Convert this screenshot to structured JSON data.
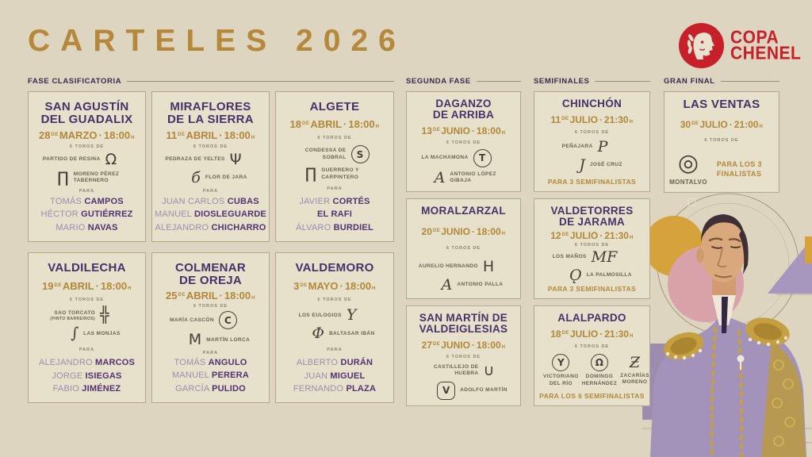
{
  "page": {
    "title": "CARTELES 2026"
  },
  "logo": {
    "line1": "COPA",
    "line2": "CHENEL",
    "icon": "laurel-profile-icon",
    "color": "#c8202a"
  },
  "colors": {
    "background": "#ddd5bf",
    "card": "#e7e0ca",
    "gold": "#b1883a",
    "purple": "#46316b",
    "red": "#c8202a"
  },
  "labels": {
    "toros": "6 TOROS DE",
    "para": "PARA",
    "de": "DE",
    "h": "H",
    "dot": "·"
  },
  "sections": [
    {
      "id": "fase",
      "label": "FASE CLASIFICATORIA"
    },
    {
      "id": "segunda",
      "label": "SEGUNDA FASE"
    },
    {
      "id": "semis",
      "label": "SEMIFINALES"
    },
    {
      "id": "final",
      "label": "GRAN FINAL"
    }
  ],
  "cards": [
    {
      "section": "fase",
      "layout": "duo",
      "venue": [
        "SAN AGUSTÍN",
        "DEL GUADALIX"
      ],
      "day": "28",
      "month": "MARZO",
      "time": "18:00",
      "ganaderias": [
        {
          "name": "PARTIDO DE RESINA",
          "glyph": "Ω",
          "shape": "plain"
        },
        {
          "name": "MORENO PÉREZ TABERNERO",
          "glyph": "∏",
          "shape": "plain"
        }
      ],
      "toreros": [
        {
          "first": "TOMÁS",
          "last": "CAMPOS"
        },
        {
          "first": "HÉCTOR",
          "last": "GUTIÉRREZ"
        },
        {
          "first": "MARIO",
          "last": "NAVAS"
        }
      ]
    },
    {
      "section": "fase",
      "layout": "duo",
      "venue": [
        "MIRAFLORES",
        "DE LA SIERRA"
      ],
      "day": "11",
      "month": "ABRIL",
      "time": "18:00",
      "ganaderias": [
        {
          "name": "PEDRAZA DE YELTES",
          "glyph": "Ψ",
          "shape": "plain"
        },
        {
          "name": "FLOR DE JARA",
          "glyph": "б",
          "shape": "plain",
          "serif": true
        }
      ],
      "toreros": [
        {
          "first": "JUAN CARLOS",
          "last": "CUBAS"
        },
        {
          "first": "MANUEL",
          "last": "DIOSLEGUARDE"
        },
        {
          "first": "ALEJANDRO",
          "last": "CHICHARRO"
        }
      ]
    },
    {
      "section": "fase",
      "layout": "duo",
      "venue": [
        "ALGETE"
      ],
      "day": "18",
      "month": "ABRIL",
      "time": "18:00",
      "ganaderias": [
        {
          "name": "CONDESSA DE SOBRAL",
          "glyph": "S",
          "shape": "circle"
        },
        {
          "name": "GUERRERO Y CARPINTERO",
          "glyph": "∏",
          "shape": "plain"
        }
      ],
      "toreros": [
        {
          "first": "JAVIER",
          "last": "CORTÉS"
        },
        {
          "first": "",
          "last": "EL RAFI"
        },
        {
          "first": "ÁLVARO",
          "last": "BURDIEL"
        }
      ]
    },
    {
      "section": "fase",
      "layout": "duo",
      "venue": [
        "VALDILECHA"
      ],
      "day": "19",
      "month": "ABRIL",
      "time": "18:00",
      "ganaderias": [
        {
          "name": "SAO TORCATO",
          "sub": "(PINTO BARREIROS)",
          "glyph": "╬",
          "shape": "plain"
        },
        {
          "name": "LAS MONJAS",
          "glyph": "∫",
          "shape": "plain",
          "serif": true
        }
      ],
      "toreros": [
        {
          "first": "ALEJANDRO",
          "last": "MARCOS"
        },
        {
          "first": "JORGE",
          "last": "ISIEGAS"
        },
        {
          "first": "FABIO",
          "last": "JIMÉNEZ"
        }
      ]
    },
    {
      "section": "fase",
      "layout": "duo",
      "venue": [
        "COLMENAR",
        "DE OREJA"
      ],
      "day": "25",
      "month": "ABRIL",
      "time": "18:00",
      "ganaderias": [
        {
          "name": "MARÍA CASCÓN",
          "glyph": "C",
          "shape": "circle"
        },
        {
          "name": "MARTÍN LORCA",
          "glyph": "M",
          "shape": "plain"
        }
      ],
      "toreros": [
        {
          "first": "TOMÁS",
          "last": "ANGULO"
        },
        {
          "first": "MANUEL",
          "last": "PERERA"
        },
        {
          "first": "GARCÍA",
          "last": "PULIDO"
        }
      ]
    },
    {
      "section": "fase",
      "layout": "duo",
      "venue": [
        "VALDEMORO"
      ],
      "day": "3",
      "month": "MAYO",
      "time": "18:00",
      "ganaderias": [
        {
          "name": "LOS EULOGIOS",
          "glyph": "Y",
          "shape": "plain",
          "serif": true
        },
        {
          "name": "BALTASAR IBÁN",
          "glyph": "Φ",
          "shape": "plain",
          "serif": true
        }
      ],
      "toreros": [
        {
          "first": "ALBERTO",
          "last": "DURÁN"
        },
        {
          "first": "JUAN",
          "last": "MIGUEL"
        },
        {
          "first": "FERNANDO",
          "last": "PLAZA"
        }
      ]
    },
    {
      "section": "segunda",
      "layout": "duo",
      "venue": [
        "DAGANZO",
        "DE ARRIBA"
      ],
      "day": "13",
      "month": "JUNIO",
      "time": "18:00",
      "ganaderias": [
        {
          "name": "LA MACHAMONA",
          "glyph": "T",
          "shape": "circle"
        },
        {
          "name": "ANTONIO LÓPEZ GIBAJA",
          "glyph": "A",
          "shape": "plain",
          "serif": true
        }
      ]
    },
    {
      "section": "segunda",
      "layout": "duo",
      "venue": [
        "MORALZARZAL"
      ],
      "day": "20",
      "month": "JUNIO",
      "time": "18:00",
      "ganaderias": [
        {
          "name": "AURELIO HERNANDO",
          "glyph": "H",
          "shape": "plain"
        },
        {
          "name": "ANTONIO PALLA",
          "glyph": "A",
          "shape": "plain",
          "serif": true
        }
      ]
    },
    {
      "section": "segunda",
      "layout": "duo",
      "venue": [
        "SAN MARTÍN DE",
        "VALDEIGLESIAS"
      ],
      "day": "27",
      "month": "JUNIO",
      "time": "18:00",
      "ganaderias": [
        {
          "name": "CASTILLEJO DE HUEBRA",
          "glyph": "∪",
          "shape": "plain"
        },
        {
          "name": "ADOLFO MARTÍN",
          "glyph": "V",
          "shape": "circle hex"
        }
      ]
    },
    {
      "section": "semis",
      "layout": "duo",
      "venue": [
        "CHINCHÓN"
      ],
      "day": "11",
      "month": "JULIO",
      "time": "21:30",
      "ganaderias": [
        {
          "name": "PEÑAJARA",
          "glyph": "P",
          "shape": "plain",
          "serif": true
        },
        {
          "name": "JOSÉ CRUZ",
          "glyph": "J",
          "shape": "plain",
          "serif": true
        }
      ],
      "note": "PARA 3 SEMIFINALISTAS"
    },
    {
      "section": "semis",
      "layout": "duo",
      "venue": [
        "VALDETORRES",
        "DE JARAMA"
      ],
      "day": "12",
      "month": "JULIO",
      "time": "21:30",
      "ganaderias": [
        {
          "name": "LOS MAÑOS",
          "glyph": "MF",
          "shape": "plain",
          "serif": true
        },
        {
          "name": "LA PALMOSILLA",
          "glyph": "Ǫ",
          "shape": "plain",
          "serif": true
        }
      ],
      "note": "PARA 3 SEMIFINALISTAS"
    },
    {
      "section": "semis",
      "layout": "trio",
      "venue": [
        "ALALPARDO"
      ],
      "day": "18",
      "month": "JULIO",
      "time": "21:30",
      "ganaderias": [
        {
          "name": "VICTORIANO DEL RÍO",
          "glyph": "Y",
          "shape": "circle"
        },
        {
          "name": "DOMINGO HERNÁNDEZ",
          "glyph": "Ω",
          "shape": "circle"
        },
        {
          "name": "ZACARÍAS MORENO",
          "glyph": "Ƶ",
          "shape": "plain",
          "serif": true
        }
      ],
      "note": "PARA LOS 6 SEMIFINALISTAS"
    },
    {
      "section": "final",
      "layout": "final",
      "venue": [
        "LAS VENTAS"
      ],
      "day": "30",
      "month": "JULIO",
      "time": "21:00",
      "ganaderias": [
        {
          "name": "MONTALVO",
          "glyph": "◎",
          "shape": "plain"
        }
      ],
      "note": "PARA LOS 3 FINALISTAS"
    }
  ]
}
